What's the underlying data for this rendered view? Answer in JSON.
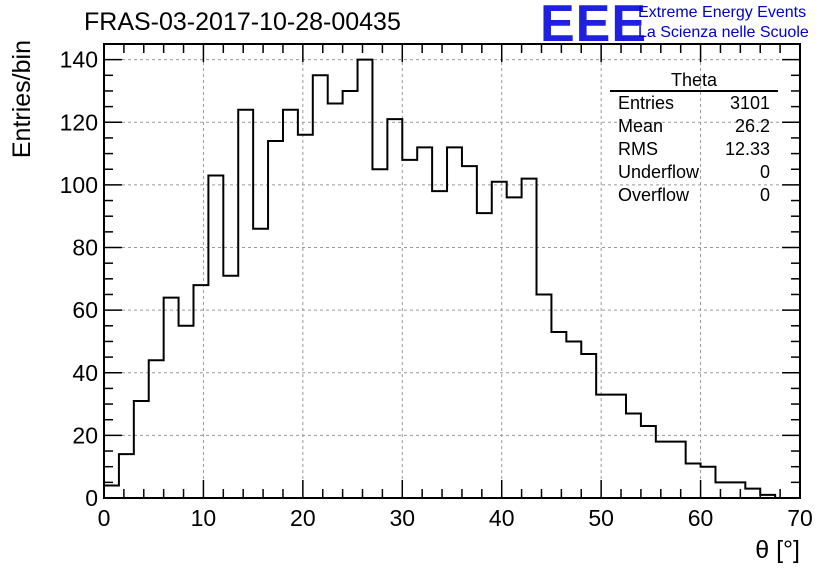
{
  "header": {
    "run_title": "FRAS-03-2017-10-28-00435"
  },
  "logo": {
    "mark": "EEE",
    "line1": "Extreme Energy Events",
    "line2": "La Scienza nelle Scuole",
    "color": "#2020e0"
  },
  "stats_box": {
    "title": "Theta",
    "rows": [
      {
        "label": "Entries",
        "value": "3101"
      },
      {
        "label": "Mean",
        "value": "26.2"
      },
      {
        "label": "RMS",
        "value": "12.33"
      },
      {
        "label": "Underflow",
        "value": "0"
      },
      {
        "label": "Overflow",
        "value": "0"
      }
    ]
  },
  "chart_data": {
    "type": "bar",
    "style": "step-histogram",
    "xlabel": "θ [°]",
    "ylabel": "Entries/bin",
    "xlim": [
      0,
      70
    ],
    "ylim": [
      0,
      145
    ],
    "grid": true,
    "x_ticks": [
      0,
      10,
      20,
      30,
      40,
      50,
      60,
      70
    ],
    "y_ticks": [
      0,
      20,
      40,
      60,
      80,
      100,
      120,
      140
    ],
    "bin_width": 1.5,
    "bin_edges_start": 0,
    "values": [
      4,
      14,
      31,
      44,
      64,
      55,
      68,
      103,
      71,
      124,
      86,
      114,
      124,
      116,
      135,
      126,
      130,
      140,
      105,
      121,
      108,
      112,
      98,
      112,
      106,
      91,
      101,
      96,
      102,
      65,
      53,
      50,
      46,
      33,
      33,
      27,
      23,
      18,
      18,
      11,
      10,
      5,
      5,
      3,
      1,
      0,
      0
    ]
  }
}
